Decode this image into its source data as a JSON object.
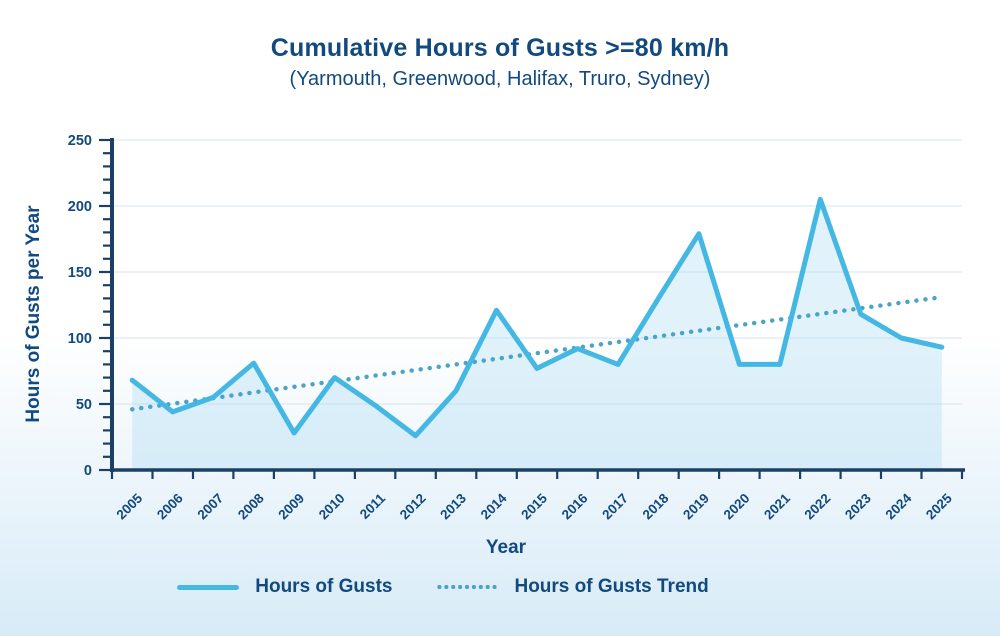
{
  "chart_data": {
    "type": "line",
    "title": "Cumulative Hours of Gusts >=80 km/h",
    "subtitle": "(Yarmouth, Greenwood, Halifax, Truro, Sydney)",
    "xlabel": "Year",
    "ylabel": "Hours of Gusts per Year",
    "ylim": [
      0,
      250
    ],
    "yticks": [
      0,
      50,
      100,
      150,
      200,
      250
    ],
    "y_minor_tick_step": 10,
    "grid": "horizontal",
    "legend_position": "bottom",
    "categories": [
      "2005",
      "2006",
      "2007",
      "2008",
      "2009",
      "2010",
      "2011",
      "2012",
      "2013",
      "2014",
      "2015",
      "2016",
      "2017",
      "2018",
      "2019",
      "2020",
      "2021",
      "2022",
      "2023",
      "2024",
      "2025"
    ],
    "series": [
      {
        "name": "Hours of Gusts",
        "style": "solid",
        "color": "#44b7e3",
        "values": [
          68,
          44,
          55,
          81,
          28,
          70,
          49,
          26,
          60,
          121,
          77,
          92,
          80,
          130,
          179,
          80,
          80,
          205,
          118,
          100,
          93
        ]
      },
      {
        "name": "Hours of Gusts Trend",
        "style": "dotted",
        "color": "#4ba3c7",
        "values": [
          46,
          50.25,
          54.5,
          58.75,
          63,
          67.25,
          71.5,
          75.75,
          80,
          84.25,
          88.5,
          92.75,
          97,
          101.25,
          105.5,
          109.75,
          114,
          118.25,
          122.5,
          126.75,
          131
        ]
      }
    ],
    "colors": {
      "text_navy": "#12497f",
      "axis_navy": "#1c4064",
      "gridline": "#dde9f3",
      "area_fill": "rgba(168,217,240,0.35)",
      "background_bottom": "#d7ebf7"
    }
  }
}
